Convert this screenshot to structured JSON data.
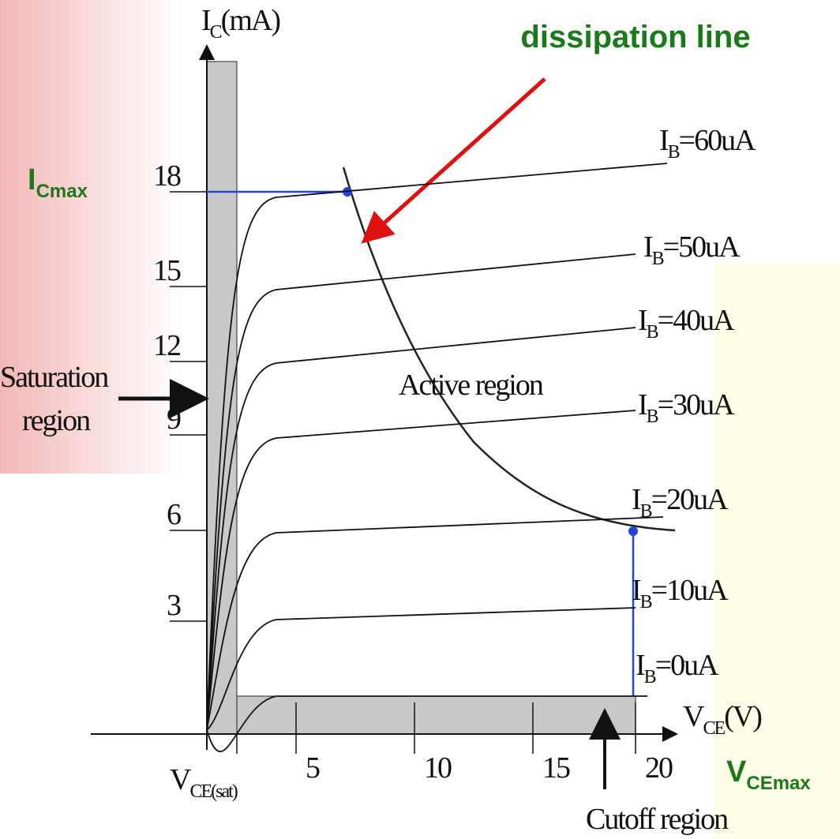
{
  "title": {
    "line2": "dissipation line"
  },
  "y_axis": {
    "label": {
      "symbol": "I",
      "sub": "C",
      "unit": "(mA)"
    },
    "ticks": [
      "3",
      "6",
      "9",
      "12",
      "15",
      "18"
    ],
    "max_label": {
      "symbol": "I",
      "sub": "Cmax"
    }
  },
  "x_axis": {
    "label": {
      "symbol": "V",
      "sub": "CE",
      "unit": "(V)"
    },
    "ticks": [
      "5",
      "10",
      "15",
      "20"
    ],
    "max_label": {
      "symbol": "V",
      "sub": "CEmax"
    },
    "sat_label": {
      "symbol": "V",
      "sub": "CE(sat)"
    }
  },
  "regions": {
    "saturation": [
      "Saturation",
      "region"
    ],
    "active": "Active region",
    "cutoff": "Cutoff region"
  },
  "curves": [
    {
      "symbol": "I",
      "sub": "B",
      "value": "=60uA"
    },
    {
      "symbol": "I",
      "sub": "B",
      "value": "=50uA"
    },
    {
      "symbol": "I",
      "sub": "B",
      "value": "=40uA"
    },
    {
      "symbol": "I",
      "sub": "B",
      "value": "=30uA"
    },
    {
      "symbol": "I",
      "sub": "B",
      "value": "=20uA"
    },
    {
      "symbol": "I",
      "sub": "B",
      "value": "=10uA"
    },
    {
      "symbol": "I",
      "sub": "B",
      "value": "=0uA"
    }
  ]
}
